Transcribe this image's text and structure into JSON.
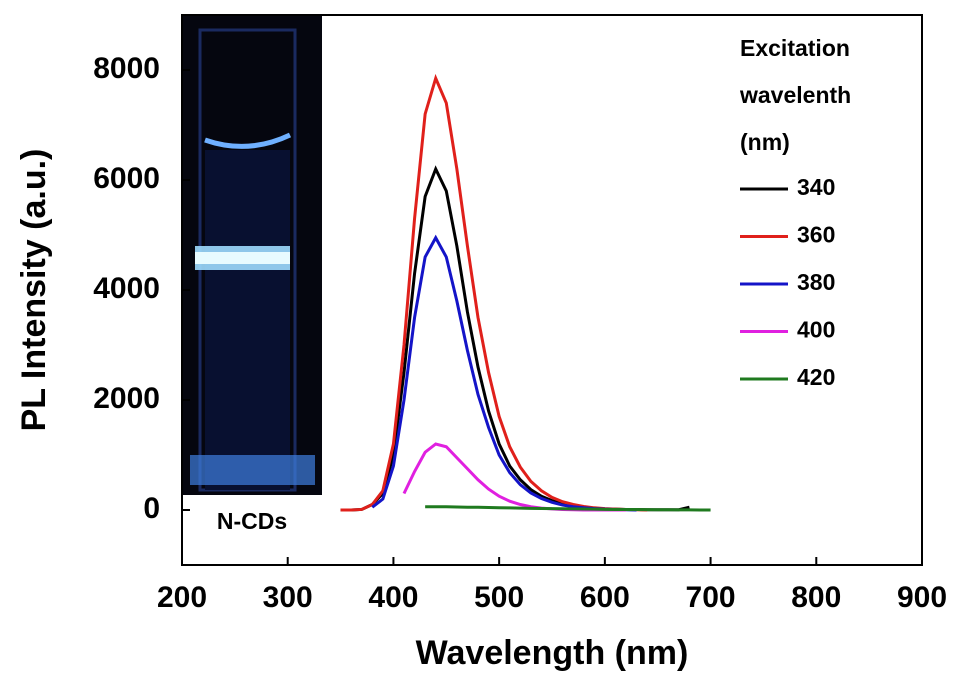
{
  "chart_data": {
    "type": "line",
    "xlabel": "Wavelength (nm)",
    "ylabel": "PL Intensity (a.u.)",
    "inset_label": "N-CDs",
    "legend_title": [
      "Excitation",
      "wavelenth",
      "(nm)"
    ],
    "xlim": [
      200,
      900
    ],
    "ylim": [
      -1000,
      9000
    ],
    "xticks": [
      200,
      300,
      400,
      500,
      600,
      700,
      800,
      900
    ],
    "yticks": [
      0,
      2000,
      4000,
      6000,
      8000
    ],
    "x": [
      350,
      360,
      370,
      380,
      390,
      400,
      410,
      420,
      430,
      440,
      450,
      460,
      470,
      480,
      490,
      500,
      510,
      520,
      530,
      540,
      550,
      560,
      570,
      580,
      590,
      600,
      610,
      620,
      630,
      640,
      650,
      660,
      670,
      680,
      690,
      700
    ],
    "series": [
      {
        "name": "340",
        "color": "#000000",
        "values": [
          0,
          0,
          10,
          100,
          300,
          1000,
          2500,
          4300,
          5700,
          6200,
          5800,
          4800,
          3600,
          2600,
          1800,
          1200,
          800,
          550,
          370,
          250,
          170,
          110,
          70,
          45,
          30,
          20,
          15,
          10,
          10,
          5,
          5,
          5,
          5,
          50,
          null,
          null
        ]
      },
      {
        "name": "360",
        "color": "#e0201b",
        "values": [
          0,
          0,
          10,
          100,
          350,
          1200,
          3000,
          5300,
          7200,
          7850,
          7400,
          6200,
          4800,
          3500,
          2500,
          1700,
          1150,
          780,
          520,
          350,
          230,
          150,
          100,
          65,
          40,
          25,
          15,
          10,
          5,
          0,
          null,
          null,
          null,
          null,
          null,
          null
        ]
      },
      {
        "name": "380",
        "color": "#1414c8",
        "values": [
          null,
          null,
          null,
          50,
          200,
          800,
          2000,
          3500,
          4600,
          4950,
          4600,
          3800,
          2900,
          2100,
          1500,
          1000,
          680,
          460,
          310,
          210,
          140,
          90,
          60,
          40,
          25,
          15,
          10,
          5,
          0,
          null,
          null,
          null,
          null,
          null,
          null,
          null
        ]
      },
      {
        "name": "400",
        "color": "#e020e0",
        "values": [
          null,
          null,
          null,
          null,
          null,
          null,
          300,
          700,
          1050,
          1200,
          1150,
          950,
          750,
          550,
          380,
          250,
          160,
          100,
          60,
          35,
          20,
          10,
          5,
          0,
          0,
          0,
          0,
          0,
          null,
          null,
          null,
          null,
          null,
          null,
          null,
          null
        ]
      },
      {
        "name": "420",
        "color": "#1f7a1f",
        "values": [
          null,
          null,
          null,
          null,
          null,
          null,
          null,
          null,
          60,
          60,
          60,
          55,
          50,
          50,
          45,
          40,
          38,
          35,
          30,
          28,
          25,
          22,
          20,
          18,
          15,
          12,
          10,
          10,
          8,
          6,
          5,
          5,
          3,
          2,
          1,
          0
        ]
      }
    ]
  }
}
